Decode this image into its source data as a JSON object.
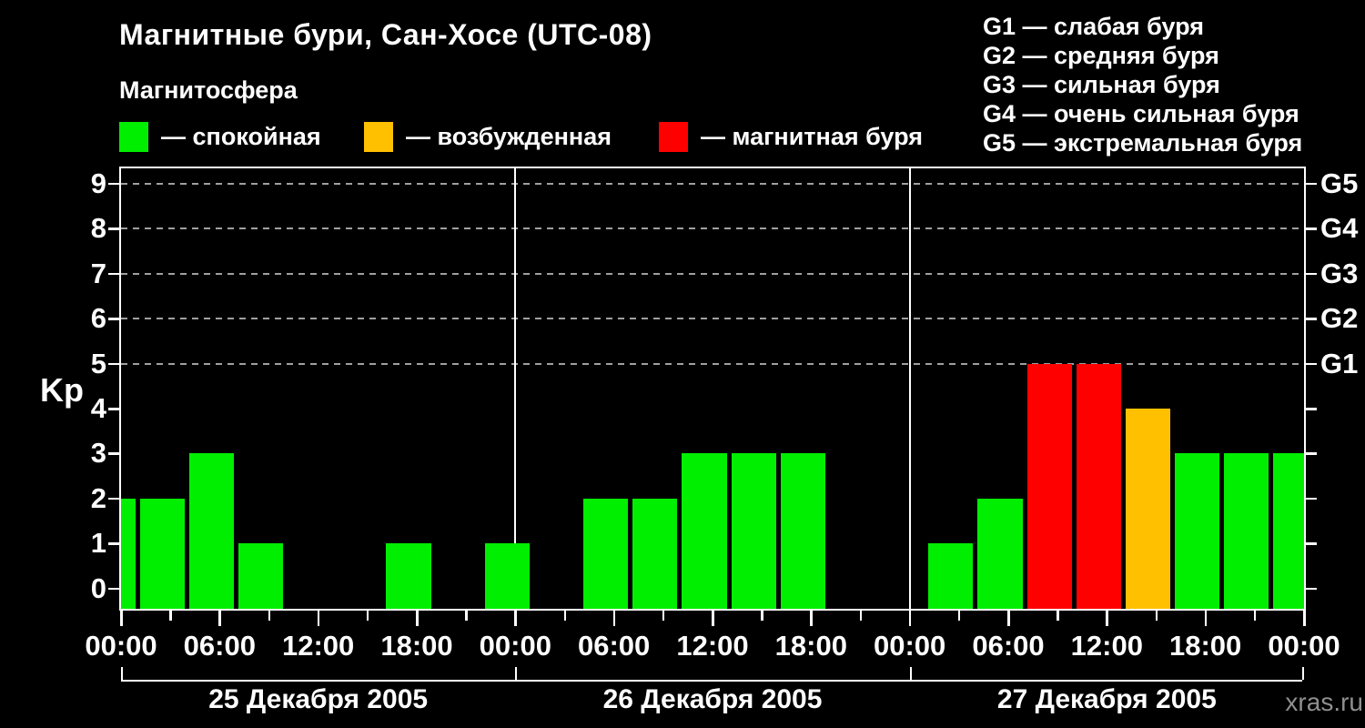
{
  "header": {
    "title": "Магнитные бури, Сан-Хосе (UTC-08)",
    "subtitle": "Магнитосфера",
    "legend": [
      {
        "label": "— спокойная",
        "color": "#00ee00"
      },
      {
        "label": "— возбужденная",
        "color": "#ffc000"
      },
      {
        "label": "— магнитная буря",
        "color": "#ff0000"
      }
    ],
    "storm_scale": [
      "G1 — слабая буря",
      "G2 — средняя буря",
      "G3 — сильная буря",
      "G4 — очень сильная буря",
      "G5 — экстремальная буря"
    ]
  },
  "chart_data": {
    "type": "bar",
    "title": "Магнитные бури, Сан-Хосе (UTC-08)",
    "ylabel": "Kp",
    "ylim": [
      0,
      9
    ],
    "y_ticks": [
      0,
      1,
      2,
      3,
      4,
      5,
      6,
      7,
      8,
      9
    ],
    "grid_kp_levels": [
      5,
      6,
      7,
      8,
      9
    ],
    "right_axis": [
      {
        "kp": 5,
        "label": "G1"
      },
      {
        "kp": 6,
        "label": "G2"
      },
      {
        "kp": 7,
        "label": "G3"
      },
      {
        "kp": 8,
        "label": "G4"
      },
      {
        "kp": 9,
        "label": "G5"
      }
    ],
    "x_tick_labels": [
      "00:00",
      "06:00",
      "12:00",
      "18:00"
    ],
    "slot_hours": 3,
    "bar_time_offset_hours": 1,
    "carryover_prev_day_kp": 2,
    "days": [
      {
        "date": "25 Декабря 2005",
        "kp": [
          2,
          3,
          1,
          0,
          0,
          1,
          0,
          1
        ]
      },
      {
        "date": "26 Декабря 2005",
        "kp": [
          0,
          2,
          2,
          3,
          3,
          3,
          0,
          0
        ]
      },
      {
        "date": "27 Декабря 2005",
        "kp": [
          1,
          2,
          5,
          5,
          4,
          3,
          3,
          3
        ]
      }
    ],
    "colors": {
      "quiet": "#00ee00",
      "excited": "#ffc000",
      "storm": "#ff0000"
    },
    "color_rules": {
      "quiet_max": 3,
      "excited": 4,
      "storm_min": 5
    },
    "grid_color": "#a0a0a0",
    "legend_position": "top"
  },
  "watermark": "xras.ru"
}
